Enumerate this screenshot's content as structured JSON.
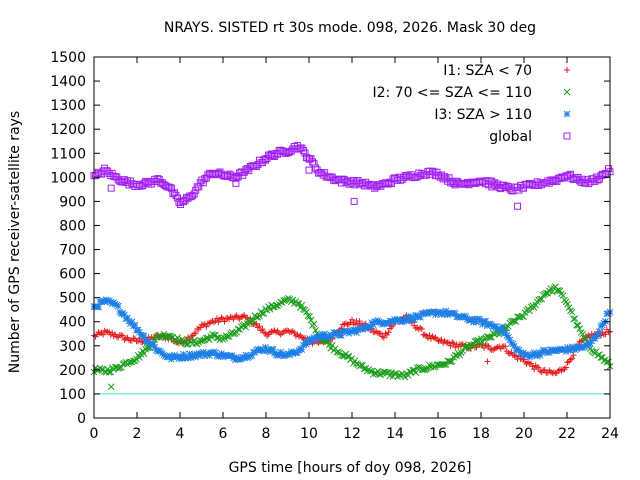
{
  "chart_data": {
    "type": "scatter",
    "title": "NRAYS. SISTED rt 30s mode. 098, 2026. Mask 30 deg",
    "xlabel": "GPS time [hours of doy 098, 2026]",
    "ylabel": "Number of GPS receiver-satellite rays",
    "xlim": [
      0,
      24
    ],
    "ylim": [
      0,
      1500
    ],
    "xticks": [
      "0",
      "2",
      "4",
      "6",
      "8",
      "10",
      "12",
      "14",
      "16",
      "18",
      "20",
      "22",
      "24"
    ],
    "yticks": [
      "0",
      "100",
      "200",
      "300",
      "400",
      "500",
      "600",
      "700",
      "800",
      "900",
      "1000",
      "1100",
      "1200",
      "1300",
      "1400",
      "1500"
    ],
    "reference_line": {
      "y": 100,
      "color": "#40e0d0"
    },
    "legend_position": "top-right",
    "series": [
      {
        "name": "I1: SZA < 70",
        "marker": "+",
        "color": "#e41a1c",
        "x": [
          0,
          0.5,
          1,
          1.5,
          2,
          2.5,
          3,
          3.5,
          4,
          4.5,
          5,
          5.5,
          6,
          6.5,
          7,
          7.5,
          8,
          8.5,
          9,
          9.5,
          10,
          10.5,
          11,
          11.5,
          12,
          12.5,
          13,
          13.5,
          14,
          14.5,
          15,
          15.5,
          16,
          16.5,
          17,
          17.5,
          18,
          18.5,
          19,
          19.5,
          20,
          20.5,
          21,
          21.5,
          22,
          22.5,
          23,
          23.5,
          24
        ],
        "y": [
          340,
          355,
          345,
          330,
          320,
          325,
          340,
          335,
          310,
          340,
          380,
          400,
          410,
          415,
          420,
          390,
          350,
          355,
          360,
          345,
          320,
          310,
          330,
          380,
          400,
          390,
          360,
          340,
          400,
          420,
          380,
          340,
          320,
          310,
          300,
          295,
          300,
          290,
          300,
          260,
          240,
          210,
          190,
          185,
          220,
          300,
          340,
          350,
          360
        ]
      },
      {
        "name": "I2: 70 <= SZA <= 110",
        "marker": "x",
        "color": "#1a9e1a",
        "x": [
          0,
          0.5,
          1,
          1.5,
          2,
          2.5,
          3,
          3.5,
          4,
          4.5,
          5,
          5.5,
          6,
          6.5,
          7,
          7.5,
          8,
          8.5,
          9,
          9.5,
          10,
          10.5,
          11,
          11.5,
          12,
          12.5,
          13,
          13.5,
          14,
          14.5,
          15,
          15.5,
          16,
          16.5,
          17,
          17.5,
          18,
          18.5,
          19,
          19.5,
          20,
          20.5,
          21,
          21.5,
          22,
          22.5,
          23,
          23.5,
          24
        ],
        "y": [
          200,
          195,
          205,
          230,
          250,
          290,
          340,
          345,
          320,
          310,
          320,
          340,
          330,
          350,
          380,
          420,
          450,
          470,
          490,
          480,
          420,
          340,
          300,
          270,
          240,
          210,
          190,
          185,
          180,
          175,
          200,
          210,
          220,
          230,
          270,
          300,
          320,
          340,
          360,
          400,
          430,
          470,
          520,
          540,
          480,
          380,
          300,
          260,
          220
        ]
      },
      {
        "name": "I3: SZA > 110",
        "marker": "*",
        "color": "#1e7fe6",
        "x": [
          0,
          0.5,
          1,
          1.5,
          2,
          2.5,
          3,
          3.5,
          4,
          4.5,
          5,
          5.5,
          6,
          6.5,
          7,
          7.5,
          8,
          8.5,
          9,
          9.5,
          10,
          10.5,
          11,
          11.5,
          12,
          12.5,
          13,
          13.5,
          14,
          14.5,
          15,
          15.5,
          16,
          16.5,
          17,
          17.5,
          18,
          18.5,
          19,
          19.5,
          20,
          20.5,
          21,
          21.5,
          22,
          22.5,
          23,
          23.5,
          24
        ],
        "y": [
          460,
          485,
          470,
          420,
          370,
          320,
          280,
          250,
          255,
          260,
          265,
          270,
          260,
          250,
          255,
          275,
          290,
          270,
          260,
          280,
          320,
          340,
          345,
          350,
          360,
          370,
          395,
          400,
          405,
          410,
          420,
          430,
          440,
          435,
          420,
          410,
          400,
          385,
          370,
          300,
          260,
          265,
          275,
          280,
          285,
          290,
          300,
          360,
          450
        ]
      },
      {
        "name": "global",
        "marker": "square",
        "color": "#a020f0",
        "x": [
          0,
          0.5,
          1,
          1.5,
          2,
          2.5,
          3,
          3.5,
          4,
          4.5,
          5,
          5.5,
          6,
          6.5,
          7,
          7.5,
          8,
          8.5,
          9,
          9.5,
          10,
          10.5,
          11,
          11.5,
          12,
          12.5,
          13,
          13.5,
          14,
          14.5,
          15,
          15.5,
          16,
          16.5,
          17,
          17.5,
          18,
          18.5,
          19,
          19.5,
          20,
          20.5,
          21,
          21.5,
          22,
          22.5,
          23,
          23.5,
          24
        ],
        "y": [
          1000,
          1030,
          1000,
          980,
          970,
          975,
          990,
          960,
          890,
          920,
          980,
          1020,
          1010,
          1000,
          1020,
          1050,
          1080,
          1100,
          1110,
          1130,
          1080,
          1020,
          1000,
          985,
          980,
          975,
          960,
          970,
          990,
          1000,
          1010,
          1020,
          1015,
          990,
          970,
          980,
          985,
          975,
          960,
          950,
          960,
          970,
          980,
          990,
          1010,
          990,
          980,
          1000,
          1030
        ]
      }
    ],
    "outliers": [
      {
        "series": 3,
        "x": 0.8,
        "y": 955
      },
      {
        "series": 3,
        "x": 6.6,
        "y": 975
      },
      {
        "series": 3,
        "x": 10,
        "y": 1030
      },
      {
        "series": 3,
        "x": 12.1,
        "y": 900
      },
      {
        "series": 3,
        "x": 18.5,
        "y": 960
      },
      {
        "series": 3,
        "x": 19.7,
        "y": 880
      },
      {
        "series": 1,
        "x": 0.8,
        "y": 130
      },
      {
        "series": 0,
        "x": 18.3,
        "y": 235
      }
    ]
  }
}
